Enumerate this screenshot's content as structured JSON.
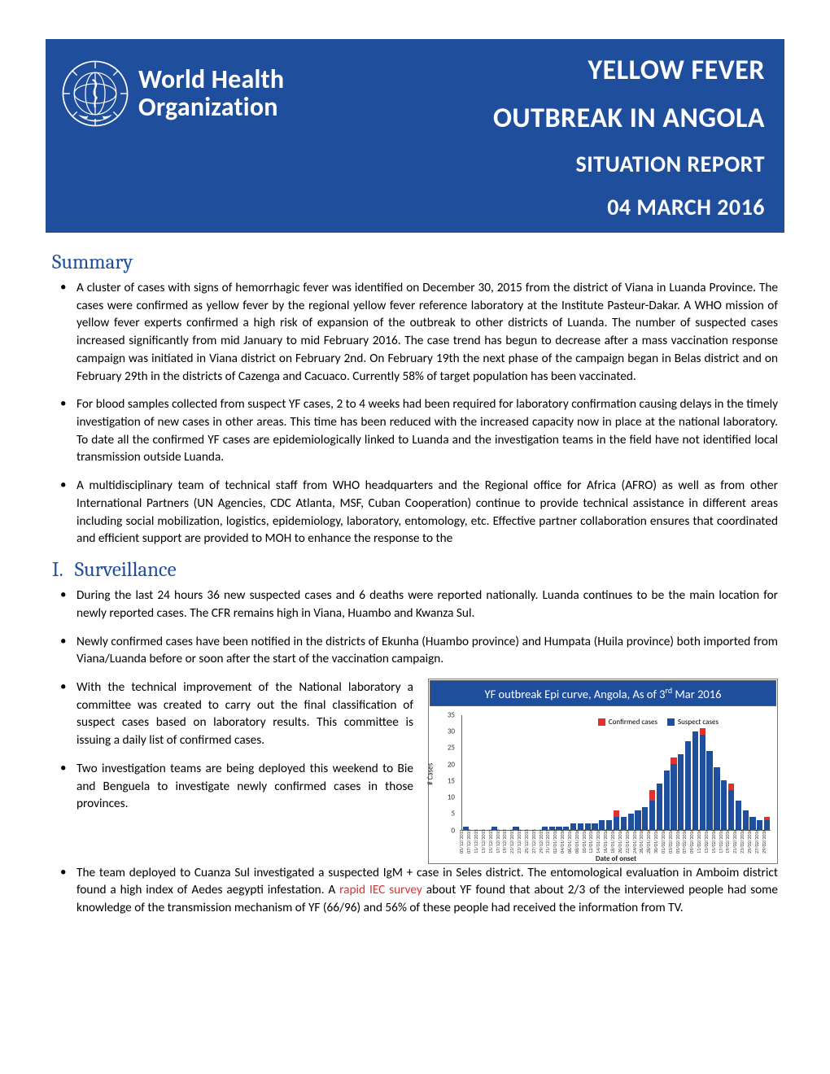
{
  "banner": {
    "org_line1": "World Health",
    "org_line2": "Organization",
    "title_line1": "YELLOW FEVER",
    "title_line2": "OUTBREAK IN ANGOLA",
    "title_line3": "SITUATION REPORT",
    "title_line4": "04 MARCH 2016",
    "bg_color": "#1f4e9c",
    "text_color": "#ffffff"
  },
  "sections": {
    "summary": {
      "heading": "Summary",
      "items": [
        "A cluster of cases with signs of hemorrhagic fever was identified on December 30, 2015 from the district of Viana in Luanda Province. The cases were confirmed as yellow fever by the regional yellow fever reference laboratory at the Institute Pasteur-Dakar. A WHO mission of yellow fever experts confirmed a high risk of expansion of the outbreak to other districts of Luanda.  The number of suspected cases increased significantly  from mid January to mid February 2016. The case trend has begun to decrease after a mass vaccination response campaign was initiated in Viana district on February 2nd. On February 19th the next phase of the campaign began in Belas district and on February 29th in the districts of Cazenga and Cacuaco. Currently  58% of target population has been vaccinated.",
        "For blood samples collected from suspect YF cases, 2 to 4 weeks had been required for laboratory confirmation causing delays in the timely investigation of new cases in other areas. This time has been reduced with the increased capacity now in place at the national laboratory. To date all the confirmed YF cases are epidemiologically linked to Luanda and the investigation teams in the field have not identified local transmission outside Luanda.",
        "A multidisciplinary team of technical staff from WHO headquarters and the Regional office for Africa (AFRO) as well as from other International Partners (UN Agencies, CDC Atlanta, MSF, Cuban Cooperation) continue to provide technical assistance in different areas including social mobilization, logistics, epidemiology, laboratory, entomology, etc.  Effective partner collaboration ensures that coordinated and efficient support are provided to MOH to enhance the response to the"
      ]
    },
    "surveillance": {
      "number": "I.",
      "heading": "Surveillance",
      "items_top": [
        "During the last 24 hours 36 new suspected cases and 6 deaths were reported nationally. Luanda continues to be the main location for newly reported cases. The CFR remains high in Viana, Huambo and  Kwanza Sul.",
        "Newly confirmed cases have been notified in the districts of Ekunha (Huambo province) and Humpata (Huila province) both imported from Viana/Luanda before or soon after the start of the vaccination campaign."
      ],
      "items_left": [
        "With the technical improvement of the National laboratory a committee was created to carry out the final classification of suspect cases based on laboratory results. This committee is issuing a daily list of confirmed cases.",
        "Two investigation teams are being deployed this weekend to Bie and Benguela to investigate newly confirmed cases in those provinces."
      ],
      "item_bottom_pre": "The  team deployed to Cuanza Sul investigated a suspected IgM + case in Seles district. The entomological evaluation in Amboim district found a high index of Aedes aegypti infestation. A ",
      "item_bottom_red": "rapid IEC survey",
      "item_bottom_post": " about YF found that about 2/3 of the interviewed people had some knowledge of the transmission mechanism of YF (66/96) and 56% of these people had received the information from TV."
    }
  },
  "chart": {
    "type": "bar",
    "title_prefix": "YF outbreak Epi curve, Angola, As of 3",
    "title_sup": "rd",
    "title_suffix": " Mar 2016",
    "title_bg": "#1f4e9c",
    "title_color": "#ffffff",
    "legend": {
      "confirmed_label": "Confirmed cases",
      "suspect_label": "Suspect cases"
    },
    "colors": {
      "confirmed": "#e03030",
      "suspect": "#1f4e9c",
      "axis": "#666666",
      "tick_text": "#333333"
    },
    "y_axis": {
      "title": "# Cases",
      "min": 0,
      "max": 35,
      "step": 5,
      "ticks": [
        0,
        5,
        10,
        15,
        20,
        25,
        30,
        35
      ]
    },
    "x_axis": {
      "title": "Date of onset"
    },
    "categories": [
      "05/12/2015",
      "07/12/2015",
      "11/12/2015",
      "13/12/2015",
      "15/12/2015",
      "17/12/2015",
      "19/12/2015",
      "21/12/2015",
      "23/12/2015",
      "25/12/2015",
      "27/12/2015",
      "29/12/2015",
      "31/12/2015",
      "02/01/2016",
      "04/01/2016",
      "06/01/2016",
      "08/01/2016",
      "10/01/2016",
      "12/01/2016",
      "14/01/2016",
      "16/01/2016",
      "18/01/2016",
      "20/01/2016",
      "22/01/2016",
      "24/01/2016",
      "26/01/2016",
      "28/01/2016",
      "30/01/2016",
      "01/02/2016",
      "03/02/2016",
      "05/02/2016",
      "07/02/2016",
      "09/02/2016",
      "11/02/2016",
      "13/02/2016",
      "15/02/2016",
      "17/02/2016",
      "19/02/2016",
      "21/02/2016",
      "23/02/2016",
      "25/02/2016",
      "27/02/2016",
      "29/02/2016"
    ],
    "suspect": [
      1,
      0,
      0,
      0,
      1,
      0,
      0,
      1,
      0,
      0,
      0,
      1,
      1,
      1,
      1,
      2,
      2,
      2,
      2,
      3,
      3,
      4,
      4,
      5,
      6,
      7,
      9,
      14,
      18,
      20,
      23,
      27,
      30,
      29,
      24,
      19,
      15,
      12,
      9,
      6,
      4,
      3,
      3
    ],
    "confirmed": [
      0,
      0,
      0,
      0,
      0,
      0,
      0,
      0,
      0,
      0,
      0,
      0,
      0,
      0,
      0,
      0,
      0,
      0,
      0,
      0,
      0,
      2,
      0,
      0,
      0,
      0,
      3,
      0,
      0,
      2,
      0,
      0,
      0,
      2,
      0,
      0,
      0,
      2,
      0,
      0,
      0,
      0,
      1
    ],
    "bar_gap_ratio": 0.18
  },
  "fonts": {
    "body_family": "Calibri",
    "heading_family": "Cambria",
    "body_size_pt": 11.5,
    "heading_size_pt": 19,
    "banner_big_pt": 26,
    "banner_med_pt": 21
  },
  "palette": {
    "page_bg": "#ffffff",
    "heading_color": "#1f4e9c",
    "body_color": "#000000",
    "highlight_red": "#e03030"
  }
}
